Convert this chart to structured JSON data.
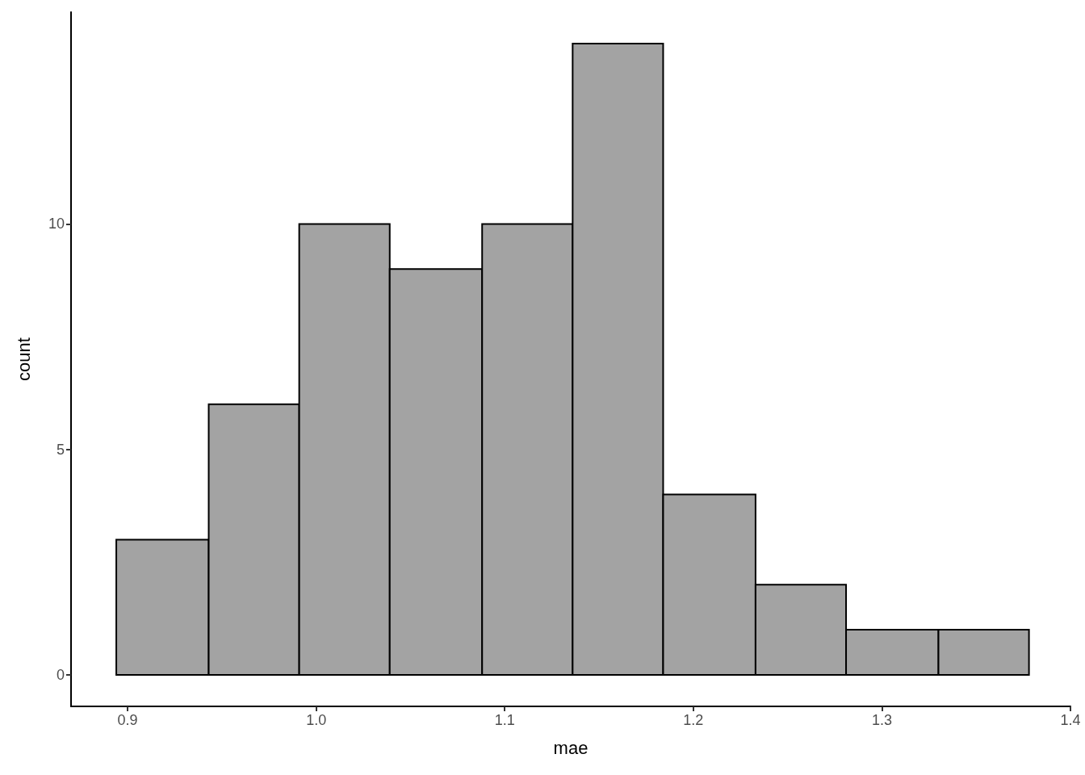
{
  "chart_data": {
    "type": "histogram",
    "xlabel": "mae",
    "ylabel": "count",
    "bins": [
      0.894,
      0.943,
      0.991,
      1.039,
      1.088,
      1.136,
      1.184,
      1.233,
      1.281,
      1.33,
      1.378
    ],
    "values": [
      3,
      6,
      10,
      9,
      10,
      14,
      4,
      2,
      1,
      1
    ],
    "color": "#a3a3a3",
    "xlim": [
      0.87,
      1.4
    ],
    "ylim": [
      -0.7,
      14.7
    ],
    "xticks": [
      0.9,
      {
        "value": 1.0,
        "label": "1.0"
      },
      1.1,
      1.2,
      1.3,
      1.4
    ],
    "yticks": [
      0,
      5,
      10
    ]
  }
}
